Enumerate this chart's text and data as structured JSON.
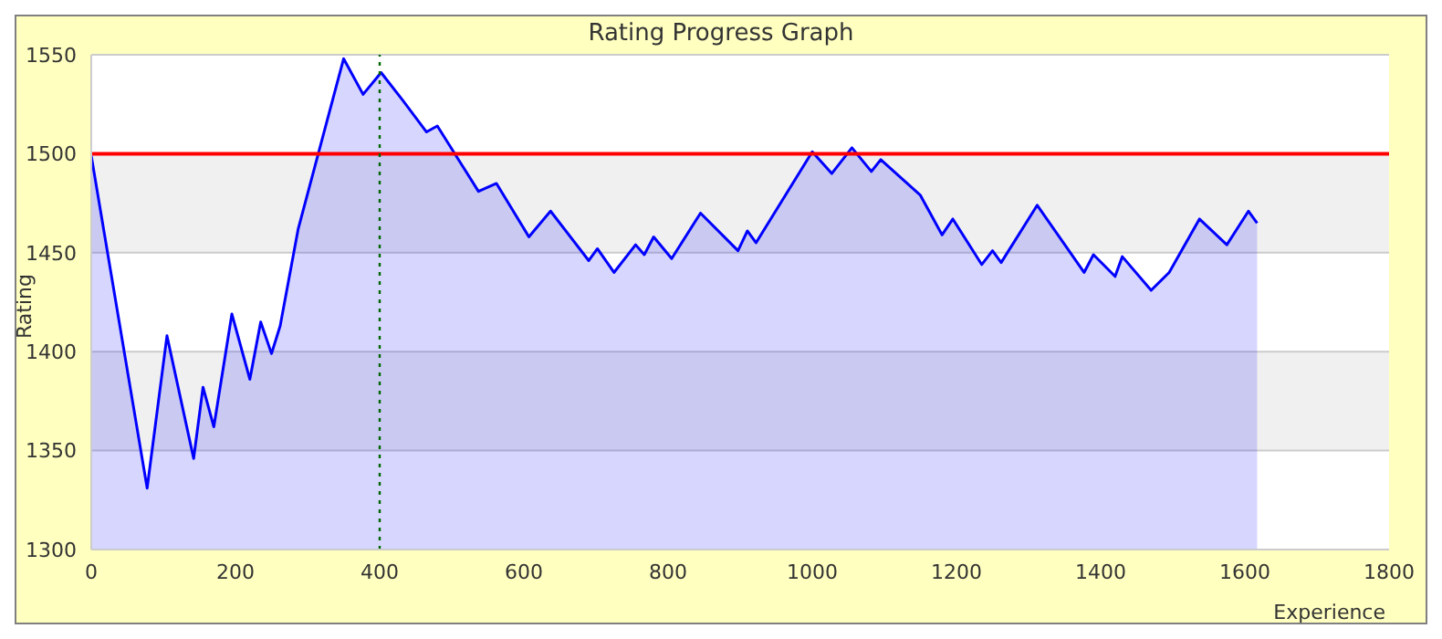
{
  "chart_data": {
    "type": "area",
    "title": "Rating Progress Graph",
    "xlabel": "Experience",
    "ylabel": "Rating",
    "x": [
      0,
      77.5,
      105,
      142,
      155,
      170,
      195,
      220,
      235,
      250,
      262,
      287,
      350,
      377,
      402,
      432,
      465,
      480,
      537,
      562,
      607,
      637,
      690,
      702,
      725,
      755,
      767,
      780,
      805,
      845,
      897,
      910,
      922,
      1000,
      1027,
      1055,
      1082,
      1095,
      1150,
      1180,
      1195,
      1235,
      1250,
      1262,
      1312,
      1377,
      1390,
      1420,
      1430,
      1470,
      1495,
      1537,
      1575,
      1605,
      1617
    ],
    "series": [
      {
        "color": "#0000ff",
        "values": [
          1499,
          1331,
          1408,
          1346,
          1382,
          1362,
          1419,
          1386,
          1415,
          1399,
          1413,
          1462,
          1548,
          1530,
          1541,
          1527,
          1511,
          1514,
          1481,
          1485,
          1458,
          1471,
          1446,
          1452,
          1440,
          1454,
          1449,
          1458,
          1447,
          1470,
          1451,
          1461,
          1455,
          1501,
          1490,
          1503,
          1491,
          1497,
          1479,
          1459,
          1467,
          1444,
          1451,
          1445,
          1474,
          1440,
          1449,
          1438,
          1448,
          1431,
          1440,
          1467,
          1454,
          1471,
          1465
        ]
      }
    ],
    "xlim": [
      0,
      1800
    ],
    "xticks": [
      0,
      200,
      400,
      600,
      800,
      1000,
      1200,
      1400,
      1600,
      1800
    ],
    "ylim": [
      1300,
      1550
    ],
    "yticks": [
      1300,
      1350,
      1400,
      1450,
      1500,
      1550
    ],
    "grid": "y",
    "ref_lines": [
      {
        "axis": "y",
        "value": 1500,
        "color": "#ff0000",
        "line_style": "solid"
      },
      {
        "axis": "x",
        "value": 400,
        "color": "#006600",
        "line_style": "dotted"
      }
    ]
  }
}
